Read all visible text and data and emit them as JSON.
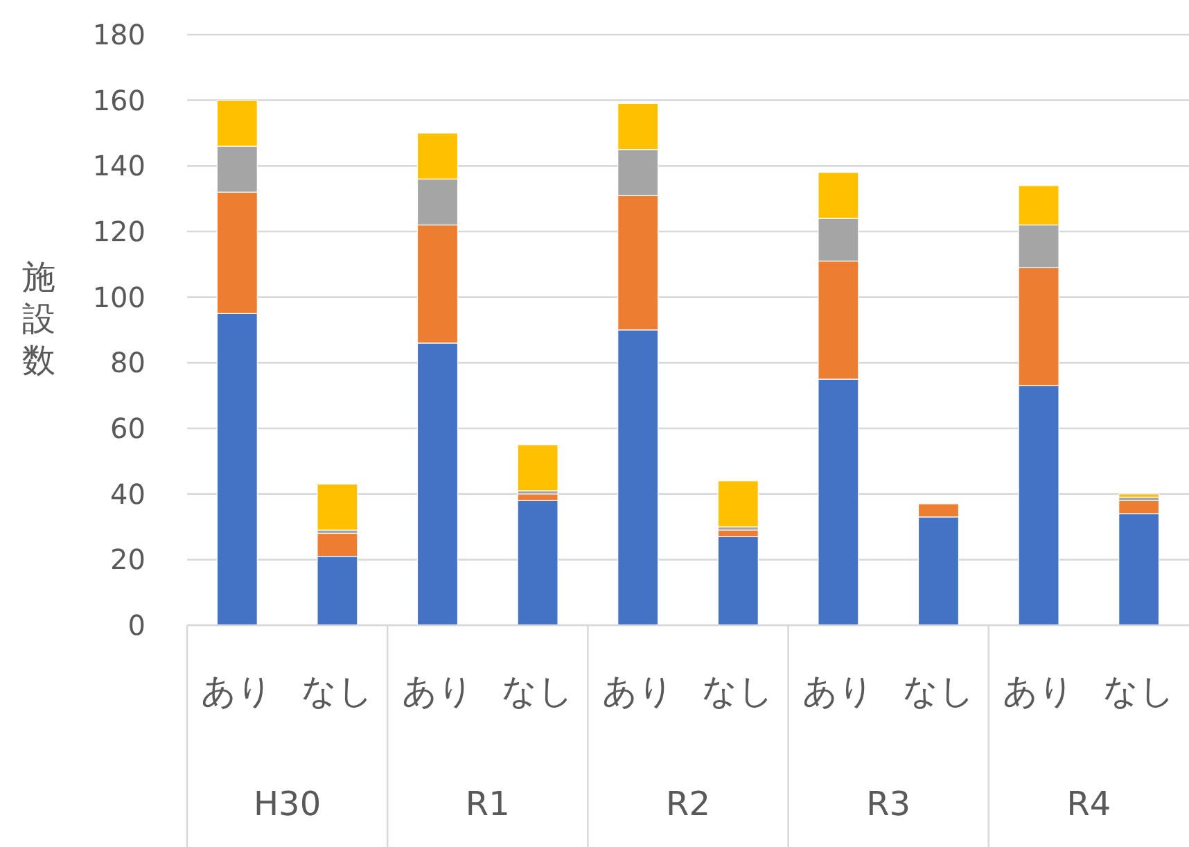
{
  "chart_data": {
    "type": "bar",
    "stacked": true,
    "ylabel": "施設数",
    "categories": [
      "あり",
      "なし",
      "あり",
      "なし",
      "あり",
      "なし",
      "あり",
      "なし",
      "あり",
      "なし"
    ],
    "annotations": [
      "H30",
      "R1",
      "R2",
      "R3",
      "R4"
    ],
    "series": [
      {
        "color": "#4472c4",
        "values": [
          95,
          21,
          86,
          38,
          90,
          27,
          75,
          33,
          73,
          34
        ]
      },
      {
        "color": "#ed7d31",
        "values": [
          37,
          7,
          36,
          2,
          41,
          2,
          36,
          4,
          36,
          4
        ]
      },
      {
        "color": "#a5a5a5",
        "values": [
          14,
          1,
          14,
          1,
          14,
          1,
          13,
          0,
          13,
          1
        ]
      },
      {
        "color": "#ffc000",
        "values": [
          14,
          14,
          14,
          14,
          14,
          14,
          14,
          0,
          12,
          1
        ]
      }
    ],
    "ylim": [
      0,
      180
    ],
    "yticks": [
      0,
      20,
      40,
      60,
      80,
      100,
      120,
      140,
      160,
      180
    ],
    "grid": "y"
  }
}
